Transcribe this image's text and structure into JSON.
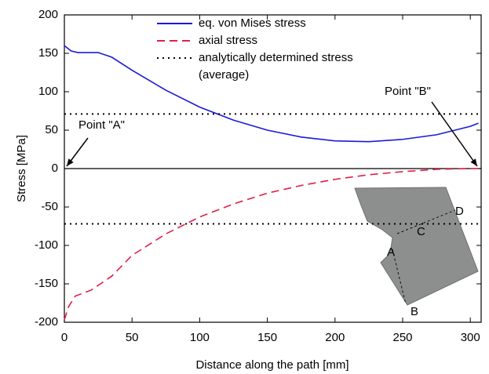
{
  "chart_data": {
    "type": "line",
    "xlabel": "Distance along the path [mm]",
    "ylabel": "Stress [MPa]",
    "xlim": [
      0,
      308
    ],
    "ylim": [
      -200,
      200
    ],
    "xticks": [
      0,
      50,
      100,
      150,
      200,
      250,
      300
    ],
    "yticks": [
      -200,
      -150,
      -100,
      -50,
      0,
      50,
      100,
      150,
      200
    ],
    "series": [
      {
        "name": "eq. von Mises stress",
        "color": "#1a1ad8",
        "dash": "solid",
        "x": [
          0,
          5,
          10,
          25,
          35,
          50,
          75,
          100,
          125,
          150,
          175,
          200,
          225,
          250,
          275,
          300,
          306
        ],
        "values": [
          160,
          153,
          151,
          151,
          145,
          128,
          102,
          80,
          63,
          50,
          41,
          36,
          35,
          38,
          44,
          55,
          59
        ]
      },
      {
        "name": "axial stress",
        "color": "#e0204a",
        "dash": "dashed",
        "x": [
          0,
          3,
          8,
          20,
          35,
          50,
          75,
          100,
          125,
          150,
          175,
          200,
          225,
          250,
          275,
          300,
          306
        ],
        "values": [
          -197,
          -180,
          -166,
          -158,
          -140,
          -113,
          -85,
          -63,
          -46,
          -32,
          -22,
          -14,
          -8,
          -4,
          -1,
          0,
          0
        ]
      },
      {
        "name": "analytically determined stress",
        "name_note": "(average)",
        "color": "#000000",
        "dash": "dotted",
        "levels": [
          71,
          -72
        ]
      }
    ],
    "annotations": [
      {
        "text": "Point \"A\"",
        "x": 0,
        "y": 0
      },
      {
        "text": "Point \"B\"",
        "x": 308,
        "y": 0
      }
    ],
    "inset_labels": [
      "A",
      "B",
      "C",
      "D"
    ]
  }
}
